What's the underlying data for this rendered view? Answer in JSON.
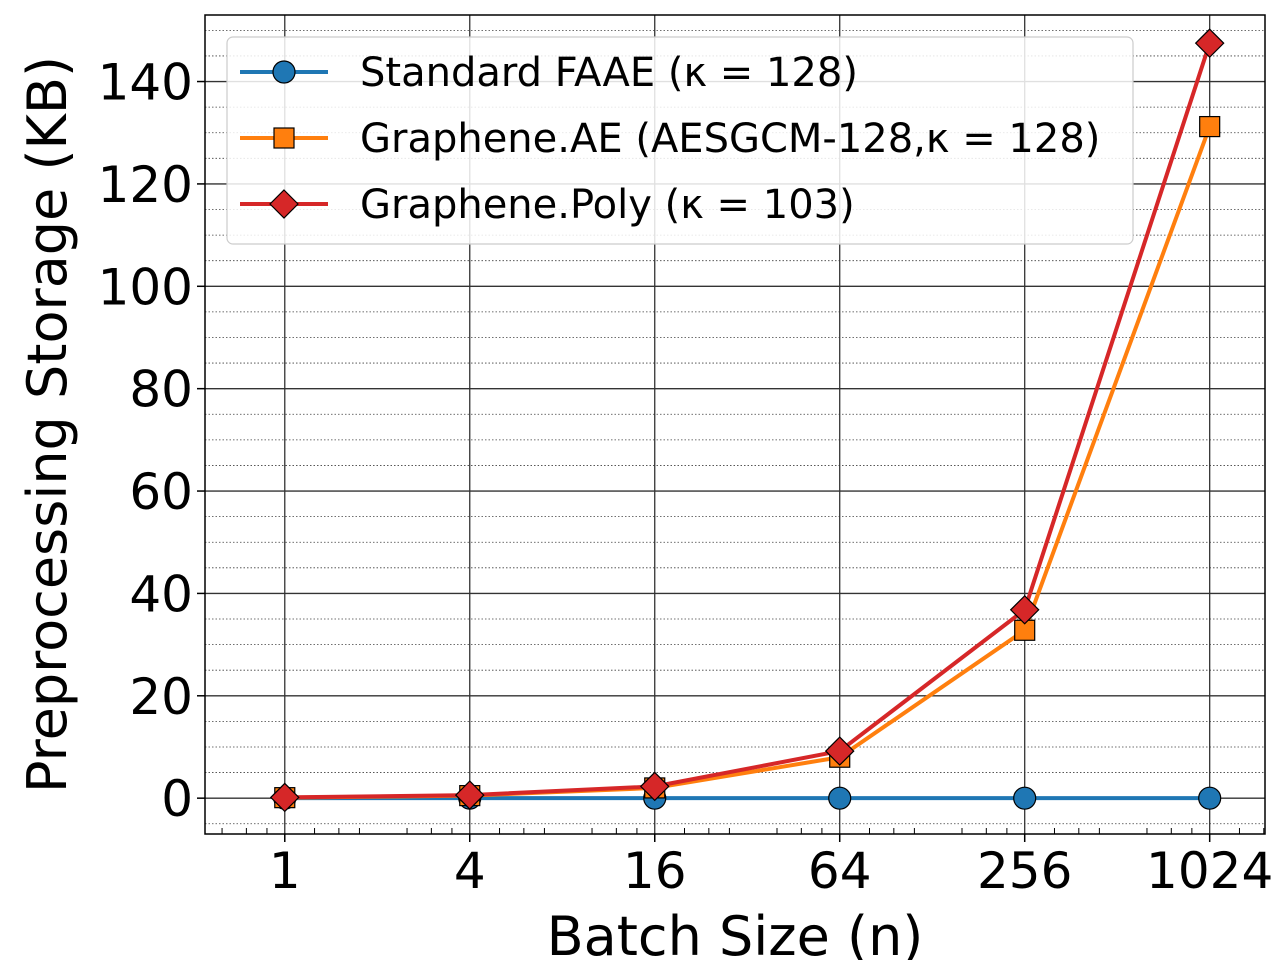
{
  "chart_data": {
    "type": "line",
    "xlabel": "Batch Size (n)",
    "ylabel": "Preprocessing Storage (KB)",
    "x_scale": "log2",
    "x": [
      1,
      4,
      16,
      64,
      256,
      1024
    ],
    "x_tick_labels": [
      "1",
      "4",
      "16",
      "64",
      "256",
      "1024"
    ],
    "xlim": [
      0.55,
      1550
    ],
    "ylim": [
      -7,
      153
    ],
    "y_ticks": [
      0,
      20,
      40,
      60,
      80,
      100,
      120,
      140
    ],
    "y_tick_labels": [
      "0",
      "20",
      "40",
      "60",
      "80",
      "100",
      "120",
      "140"
    ],
    "grid": true,
    "minor_grid": true,
    "legend_position": "top-left",
    "series": [
      {
        "name": "Standard FAAE (κ = 128)",
        "color": "#1f77b4",
        "marker": "circle",
        "values": [
          0,
          0,
          0,
          0,
          0,
          0
        ]
      },
      {
        "name": "Graphene.AE (AESGCM-128,κ = 128)",
        "color": "#ff7f0e",
        "marker": "square",
        "values": [
          0.1,
          0.5,
          2.0,
          8.0,
          32.8,
          131.2
        ]
      },
      {
        "name": "Graphene.Poly (κ = 103)",
        "color": "#d62728",
        "marker": "diamond",
        "values": [
          0.15,
          0.6,
          2.3,
          9.2,
          36.8,
          147.5
        ]
      }
    ]
  }
}
